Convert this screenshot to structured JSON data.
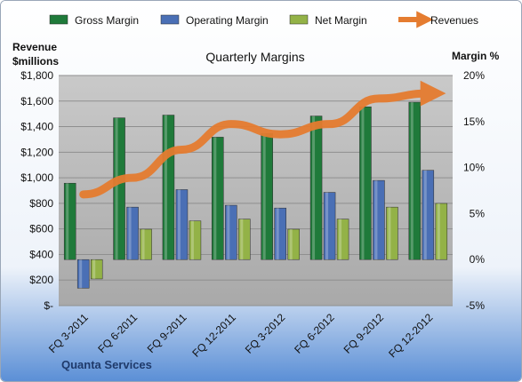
{
  "chart_data": {
    "type": "bar",
    "title": "Quarterly Margins",
    "company": "Quanta Services",
    "left_axis_label": [
      "Revenue",
      "$millions"
    ],
    "right_axis_label": "Margin %",
    "categories": [
      "FQ 3-2011",
      "FQ 6-2011",
      "FQ 9-2011",
      "FQ 12-2011",
      "FQ 3-2012",
      "FQ 6-2012",
      "FQ 9-2012",
      "FQ 12-2012"
    ],
    "left_ticks": [
      "$-",
      "$200",
      "$400",
      "$600",
      "$800",
      "$1,000",
      "$1,200",
      "$1,400",
      "$1,600",
      "$1,800"
    ],
    "right_ticks": [
      "-5%",
      "0%",
      "5%",
      "10%",
      "15%",
      "20%"
    ],
    "left_ylim": [
      0,
      1800
    ],
    "right_ylim": [
      -5,
      20
    ],
    "grid": true,
    "legend_position": "top",
    "series": [
      {
        "name": "Gross Margin",
        "axis": "right",
        "kind": "bar",
        "color": "#1f7a3a",
        "values": [
          8.3,
          15.4,
          15.7,
          13.3,
          13.7,
          15.6,
          16.6,
          17.1
        ]
      },
      {
        "name": "Operating Margin",
        "axis": "right",
        "kind": "bar",
        "color": "#4a6fb5",
        "values": [
          -3.1,
          5.7,
          7.6,
          5.9,
          5.6,
          7.3,
          8.6,
          9.7
        ]
      },
      {
        "name": "Net Margin",
        "axis": "right",
        "kind": "bar",
        "color": "#93b247",
        "values": [
          -2.1,
          3.3,
          4.2,
          4.4,
          3.3,
          4.4,
          5.7,
          6.1
        ]
      },
      {
        "name": "Revenues",
        "axis": "left",
        "kind": "line",
        "color": "#e57c30",
        "values": [
          870,
          1000,
          1220,
          1420,
          1340,
          1420,
          1620,
          1660
        ]
      }
    ]
  }
}
